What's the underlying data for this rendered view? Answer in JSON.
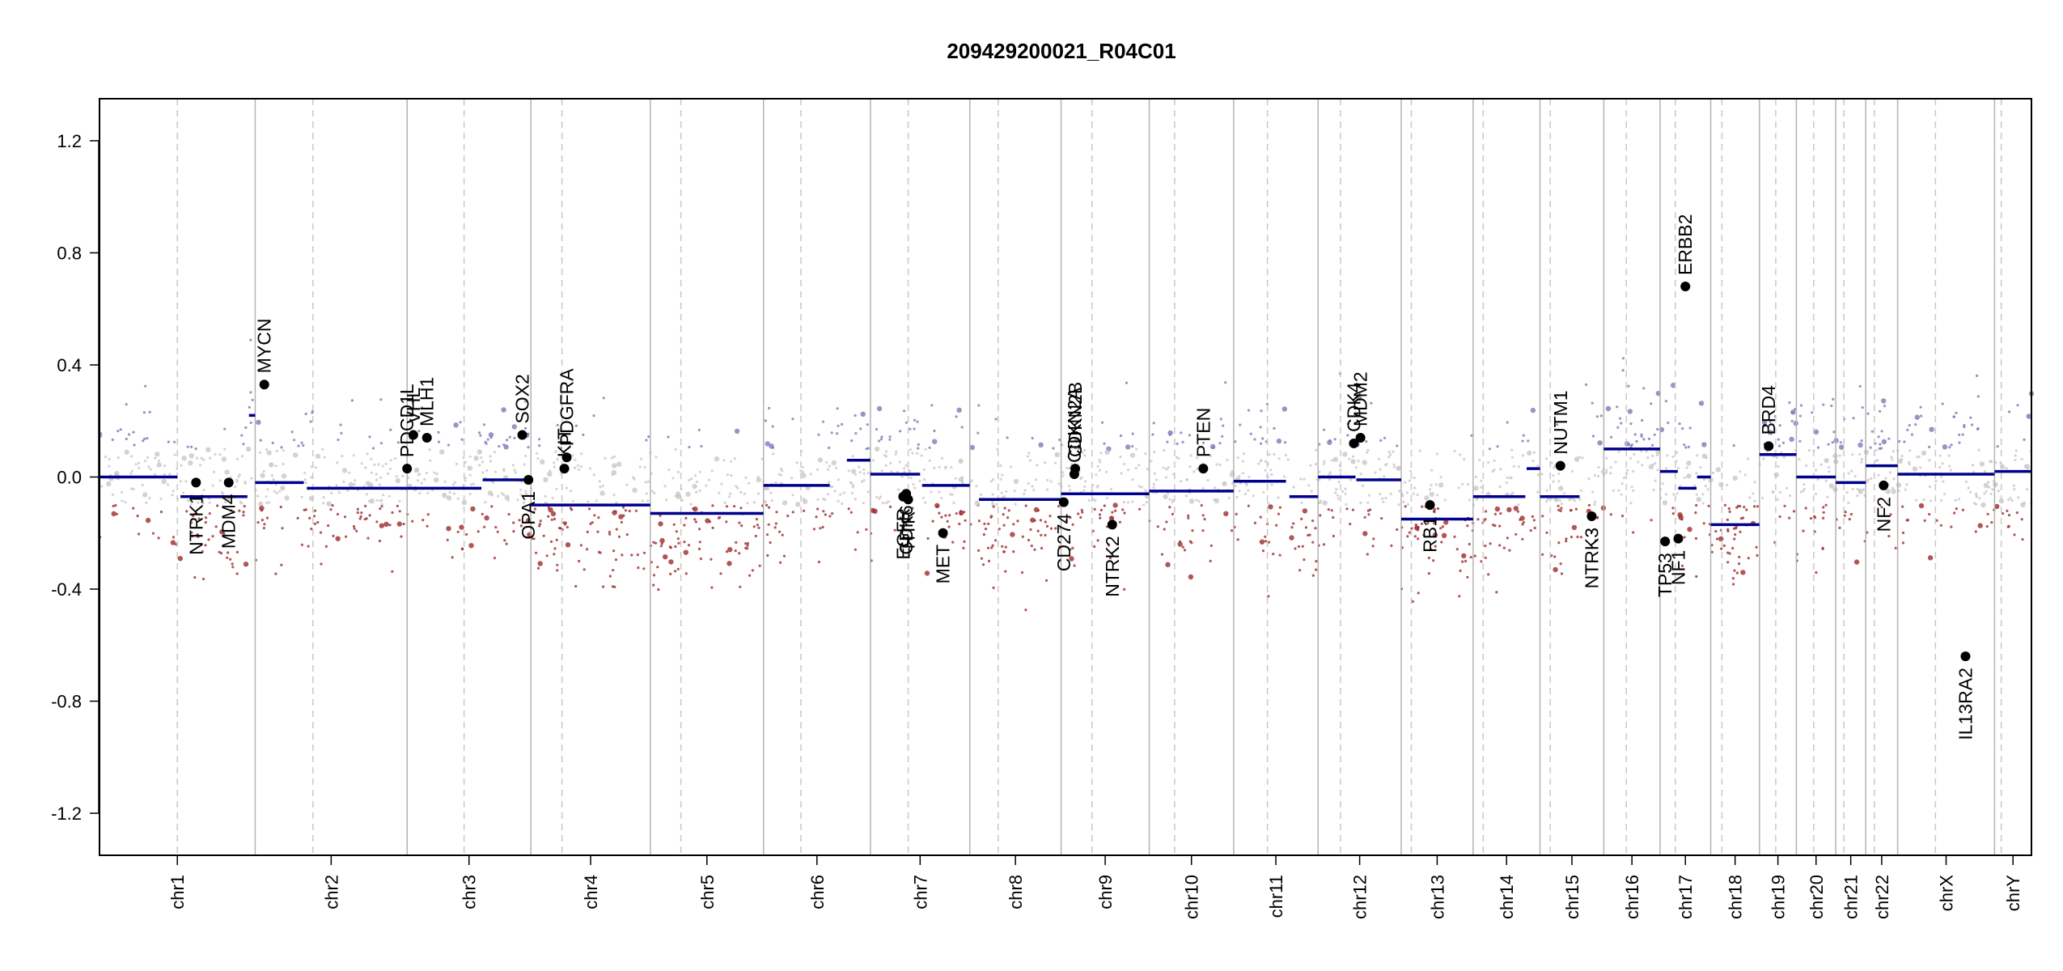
{
  "chart_data": {
    "type": "scatter",
    "title": "209429200021_R04C01",
    "xlabel": "",
    "ylabel": "",
    "ylim": [
      -1.35,
      1.35
    ],
    "y_ticks": [
      1.2,
      0.8,
      0.4,
      0.0,
      -0.4,
      -0.8,
      -1.2
    ],
    "y_tick_labels": [
      "1.2",
      "0.8",
      "0.4",
      "0.0",
      "-0.4",
      "-0.8",
      "-1.2"
    ],
    "grid": "chromosome boundaries solid, centromeres dashed",
    "colors": {
      "gain": "#7a7ab8",
      "neutral": "#c8c8c8",
      "loss": "#9e2a2a",
      "segment": "#00008b",
      "gene": "#000000"
    },
    "chromosomes": [
      {
        "name": "chr1",
        "length": 249,
        "centromere": 0.5
      },
      {
        "name": "chr2",
        "length": 243,
        "centromere": 0.38
      },
      {
        "name": "chr3",
        "length": 198,
        "centromere": 0.46
      },
      {
        "name": "chr4",
        "length": 191,
        "centromere": 0.26
      },
      {
        "name": "chr5",
        "length": 181,
        "centromere": 0.27
      },
      {
        "name": "chr6",
        "length": 171,
        "centromere": 0.35
      },
      {
        "name": "chr7",
        "length": 159,
        "centromere": 0.38
      },
      {
        "name": "chr8",
        "length": 146,
        "centromere": 0.31
      },
      {
        "name": "chr9",
        "length": 141,
        "centromere": 0.35
      },
      {
        "name": "chr10",
        "length": 135,
        "centromere": 0.3
      },
      {
        "name": "chr11",
        "length": 135,
        "centromere": 0.4
      },
      {
        "name": "chr12",
        "length": 133,
        "centromere": 0.27
      },
      {
        "name": "chr13",
        "length": 115,
        "centromere": 0.14
      },
      {
        "name": "chr14",
        "length": 107,
        "centromere": 0.15
      },
      {
        "name": "chr15",
        "length": 102,
        "centromere": 0.16
      },
      {
        "name": "chr16",
        "length": 90,
        "centromere": 0.4
      },
      {
        "name": "chr17",
        "length": 81,
        "centromere": 0.3
      },
      {
        "name": "chr18",
        "length": 78,
        "centromere": 0.23
      },
      {
        "name": "chr19",
        "length": 59,
        "centromere": 0.44
      },
      {
        "name": "chr20",
        "length": 63,
        "centromere": 0.44
      },
      {
        "name": "chr21",
        "length": 48,
        "centromere": 0.27
      },
      {
        "name": "chr22",
        "length": 51,
        "centromere": 0.27
      },
      {
        "name": "chrX",
        "length": 155,
        "centromere": 0.39
      },
      {
        "name": "chrY",
        "length": 59,
        "centromere": 0.18
      }
    ],
    "segments": [
      {
        "chr": "chr1",
        "start": 0.0,
        "end": 0.5,
        "value": 0.0
      },
      {
        "chr": "chr1",
        "start": 0.52,
        "end": 0.95,
        "value": -0.07
      },
      {
        "chr": "chr1",
        "start": 0.96,
        "end": 1.0,
        "value": 0.22
      },
      {
        "chr": "chr2",
        "start": 0.0,
        "end": 0.32,
        "value": -0.02
      },
      {
        "chr": "chr2",
        "start": 0.34,
        "end": 1.0,
        "value": -0.04
      },
      {
        "chr": "chr3",
        "start": 0.0,
        "end": 0.6,
        "value": -0.04
      },
      {
        "chr": "chr3",
        "start": 0.61,
        "end": 1.0,
        "value": -0.01
      },
      {
        "chr": "chr4",
        "start": 0.0,
        "end": 1.0,
        "value": -0.1
      },
      {
        "chr": "chr5",
        "start": 0.0,
        "end": 1.0,
        "value": -0.13
      },
      {
        "chr": "chr6",
        "start": 0.0,
        "end": 0.62,
        "value": -0.03
      },
      {
        "chr": "chr6",
        "start": 0.78,
        "end": 1.0,
        "value": 0.06
      },
      {
        "chr": "chr7",
        "start": 0.0,
        "end": 0.5,
        "value": 0.01
      },
      {
        "chr": "chr7",
        "start": 0.52,
        "end": 1.0,
        "value": -0.03
      },
      {
        "chr": "chr8",
        "start": 0.1,
        "end": 1.0,
        "value": -0.08
      },
      {
        "chr": "chr9",
        "start": 0.0,
        "end": 1.0,
        "value": -0.06
      },
      {
        "chr": "chr10",
        "start": 0.0,
        "end": 1.0,
        "value": -0.05
      },
      {
        "chr": "chr11",
        "start": 0.0,
        "end": 0.62,
        "value": -0.015
      },
      {
        "chr": "chr11",
        "start": 0.66,
        "end": 1.0,
        "value": -0.07
      },
      {
        "chr": "chr12",
        "start": 0.0,
        "end": 0.45,
        "value": 0.0
      },
      {
        "chr": "chr12",
        "start": 0.46,
        "end": 1.0,
        "value": -0.01
      },
      {
        "chr": "chr13",
        "start": 0.0,
        "end": 1.0,
        "value": -0.15
      },
      {
        "chr": "chr14",
        "start": 0.0,
        "end": 0.78,
        "value": -0.07
      },
      {
        "chr": "chr14",
        "start": 0.8,
        "end": 1.0,
        "value": 0.03
      },
      {
        "chr": "chr15",
        "start": 0.0,
        "end": 0.62,
        "value": -0.07
      },
      {
        "chr": "chr16",
        "start": 0.0,
        "end": 1.0,
        "value": 0.1
      },
      {
        "chr": "chr17",
        "start": 0.0,
        "end": 0.35,
        "value": 0.02
      },
      {
        "chr": "chr17",
        "start": 0.36,
        "end": 0.72,
        "value": -0.04
      },
      {
        "chr": "chr17",
        "start": 0.73,
        "end": 1.0,
        "value": 0.0
      },
      {
        "chr": "chr18",
        "start": 0.0,
        "end": 1.0,
        "value": -0.17
      },
      {
        "chr": "chr19",
        "start": 0.0,
        "end": 1.0,
        "value": 0.08
      },
      {
        "chr": "chr20",
        "start": 0.0,
        "end": 1.0,
        "value": 0.0
      },
      {
        "chr": "chr21",
        "start": 0.0,
        "end": 1.0,
        "value": -0.02
      },
      {
        "chr": "chr22",
        "start": 0.0,
        "end": 1.0,
        "value": 0.04
      },
      {
        "chr": "chrX",
        "start": 0.0,
        "end": 1.0,
        "value": 0.01
      },
      {
        "chr": "chrY",
        "start": 0.0,
        "end": 1.0,
        "value": 0.02
      }
    ],
    "genes": [
      {
        "name": "NTRK1",
        "chr": "chr1",
        "pos": 0.62,
        "value": -0.02,
        "label_side": "below"
      },
      {
        "name": "MDM4",
        "chr": "chr1",
        "pos": 0.83,
        "value": -0.02,
        "label_side": "below"
      },
      {
        "name": "MYCN",
        "chr": "chr2",
        "pos": 0.06,
        "value": 0.33,
        "label_side": "above"
      },
      {
        "name": "PDCD1L",
        "chr": "chr3",
        "pos": 0.0,
        "value": 0.03,
        "label_side": "above"
      },
      {
        "name": "VHL",
        "chr": "chr3",
        "pos": 0.05,
        "value": 0.15,
        "label_side": "above"
      },
      {
        "name": "MLH1",
        "chr": "chr3",
        "pos": 0.16,
        "value": 0.14,
        "label_side": "above"
      },
      {
        "name": "SOX2",
        "chr": "chr3",
        "pos": 0.93,
        "value": 0.15,
        "label_side": "above"
      },
      {
        "name": "OPA1",
        "chr": "chr3",
        "pos": 0.98,
        "value": -0.01,
        "label_side": "below"
      },
      {
        "name": "KIT",
        "chr": "chr4",
        "pos": 0.28,
        "value": 0.03,
        "label_side": "above"
      },
      {
        "name": "PDGFRA",
        "chr": "chr4",
        "pos": 0.3,
        "value": 0.07,
        "label_side": "above"
      },
      {
        "name": "EGFR",
        "chr": "chr7",
        "pos": 0.33,
        "value": -0.07,
        "label_side": "below"
      },
      {
        "name": "CDK6",
        "chr": "chr7",
        "pos": 0.36,
        "value": -0.06,
        "label_side": "below"
      },
      {
        "name": "HTR",
        "chr": "chr7",
        "pos": 0.38,
        "value": -0.08,
        "label_side": "below"
      },
      {
        "name": "MET",
        "chr": "chr7",
        "pos": 0.73,
        "value": -0.2,
        "label_side": "below"
      },
      {
        "name": "CD274",
        "chr": "chr9",
        "pos": 0.03,
        "value": -0.09,
        "label_side": "below"
      },
      {
        "name": "CDKN2A",
        "chr": "chr9",
        "pos": 0.15,
        "value": 0.01,
        "label_side": "above"
      },
      {
        "name": "CDKN2B",
        "chr": "chr9",
        "pos": 0.16,
        "value": 0.03,
        "label_side": "above"
      },
      {
        "name": "NTRK2",
        "chr": "chr9",
        "pos": 0.58,
        "value": -0.17,
        "label_side": "below"
      },
      {
        "name": "PTEN",
        "chr": "chr10",
        "pos": 0.64,
        "value": 0.03,
        "label_side": "above"
      },
      {
        "name": "CDK4",
        "chr": "chr12",
        "pos": 0.43,
        "value": 0.12,
        "label_side": "above"
      },
      {
        "name": "MDM2",
        "chr": "chr12",
        "pos": 0.51,
        "value": 0.14,
        "label_side": "above"
      },
      {
        "name": "RB1",
        "chr": "chr13",
        "pos": 0.4,
        "value": -0.1,
        "label_side": "below"
      },
      {
        "name": "NUTM1",
        "chr": "chr15",
        "pos": 0.32,
        "value": 0.04,
        "label_side": "above"
      },
      {
        "name": "NTRK3",
        "chr": "chr15",
        "pos": 0.81,
        "value": -0.14,
        "label_side": "below"
      },
      {
        "name": "TP53",
        "chr": "chr17",
        "pos": 0.1,
        "value": -0.23,
        "label_side": "below"
      },
      {
        "name": "NF1",
        "chr": "chr17",
        "pos": 0.36,
        "value": -0.22,
        "label_side": "below"
      },
      {
        "name": "ERBB2",
        "chr": "chr17",
        "pos": 0.5,
        "value": 0.68,
        "label_side": "above"
      },
      {
        "name": "BRD4",
        "chr": "chr19",
        "pos": 0.25,
        "value": 0.11,
        "label_side": "above"
      },
      {
        "name": "NF2",
        "chr": "chr22",
        "pos": 0.56,
        "value": -0.03,
        "label_side": "below"
      },
      {
        "name": "IL13RA2",
        "chr": "chrX",
        "pos": 0.7,
        "value": -0.64,
        "label_side": "below"
      }
    ]
  }
}
